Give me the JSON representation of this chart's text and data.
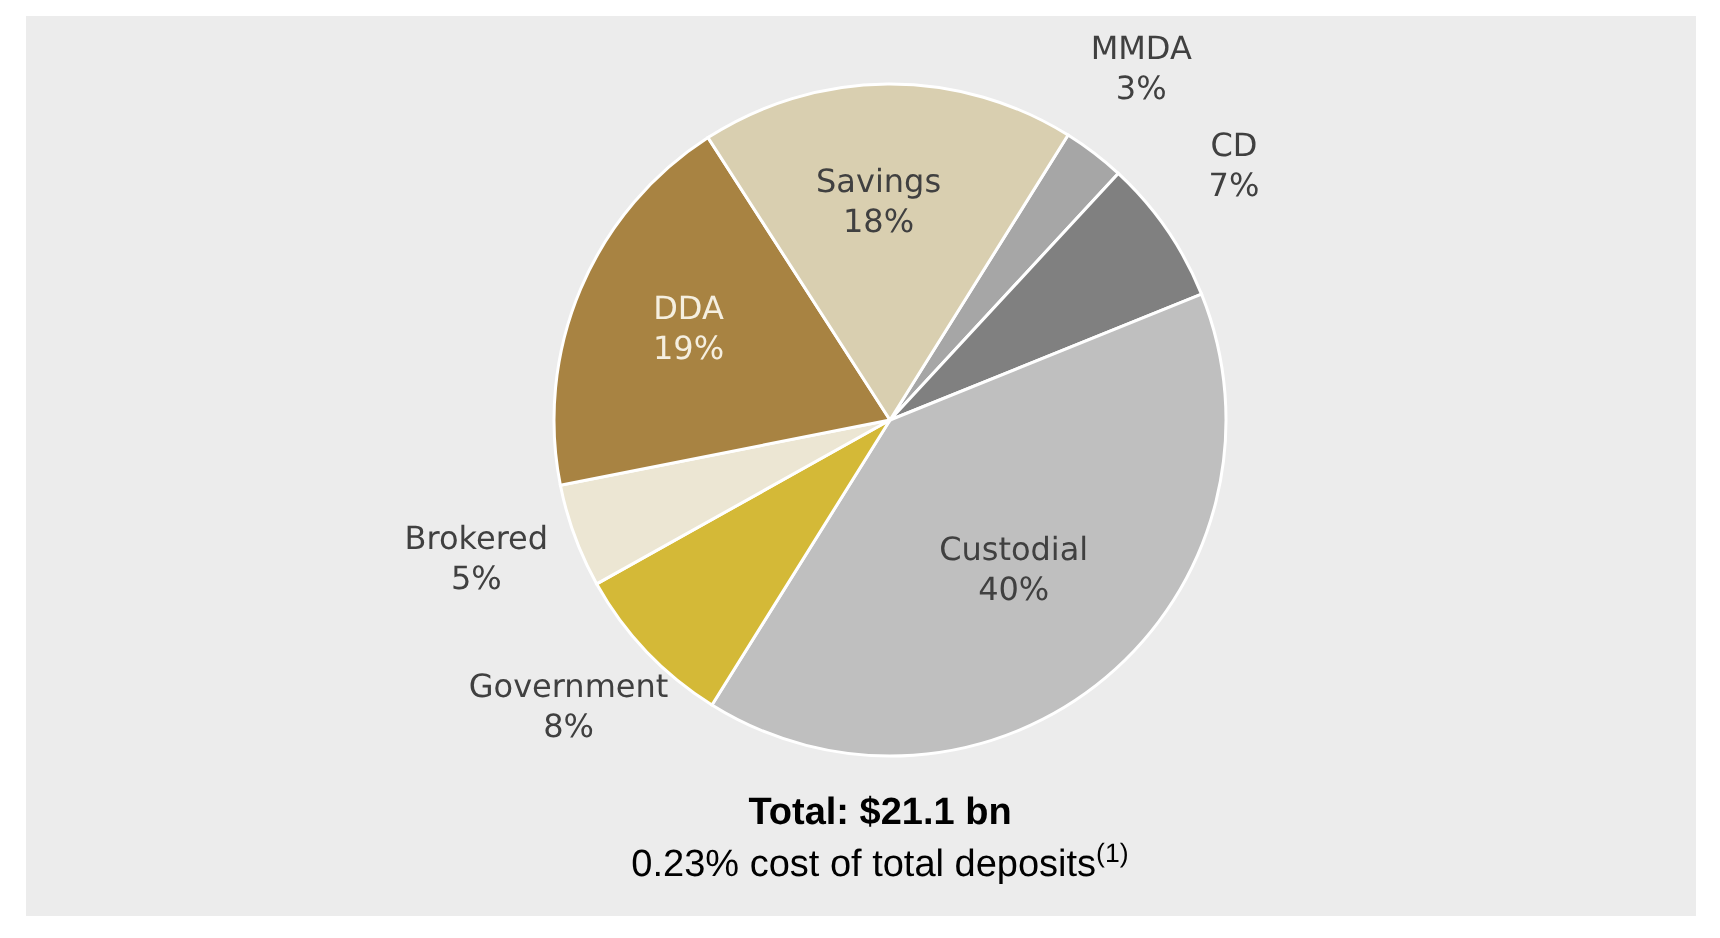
{
  "chart_data": {
    "type": "pie",
    "title": "Total: $21.1 bn",
    "subtitle": "0.23% cost of total deposits$^{(1)}$",
    "categories": [
      "MMDA",
      "CD",
      "Custodial",
      "Government",
      "Brokered",
      "DDA",
      "Savings"
    ],
    "values": [
      3,
      7,
      40,
      8,
      5,
      19,
      18
    ],
    "value_labels": [
      "3%",
      "7%",
      "40%",
      "8%",
      "5%",
      "19%",
      "18%"
    ],
    "colors": [
      "#a6a6a6",
      "#808080",
      "#bfbfbf",
      "#d4b937",
      "#ece6d3",
      "#a88342",
      "#d9cfb0"
    ]
  }
}
